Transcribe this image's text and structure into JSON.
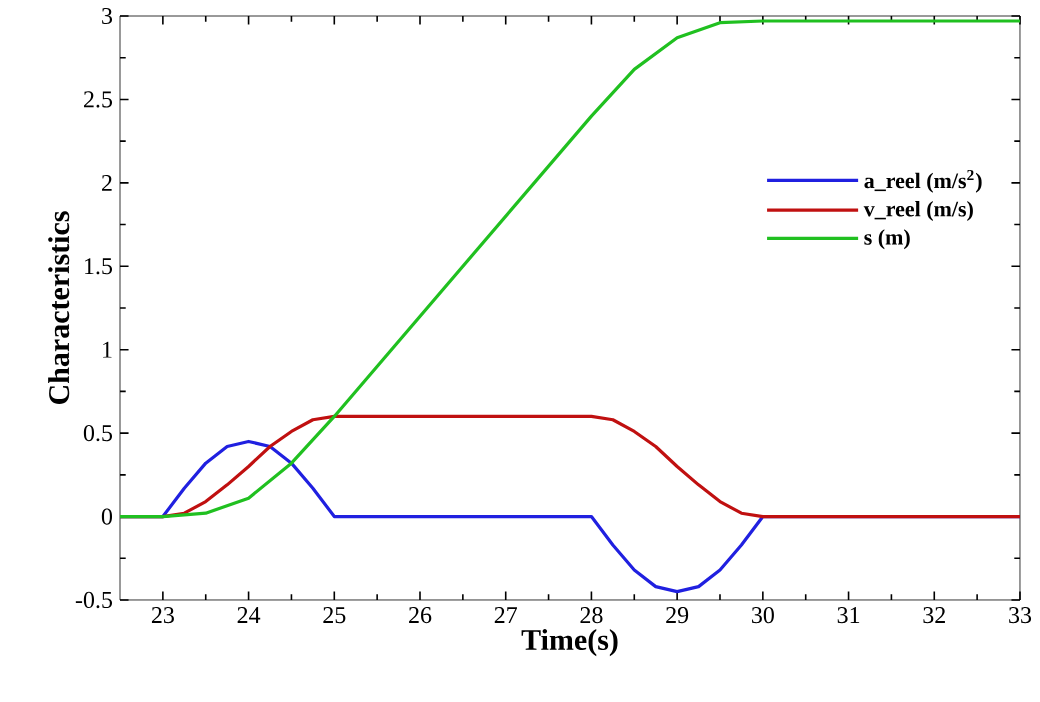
{
  "chart_data": {
    "type": "line",
    "xlabel": "Time(s)",
    "ylabel": "Characteristics",
    "xlim": [
      22.5,
      33
    ],
    "xticks": [
      23,
      24,
      25,
      26,
      27,
      28,
      29,
      30,
      31,
      32,
      33
    ],
    "ylim": [
      -0.5,
      3
    ],
    "yticks": [
      -0.5,
      0,
      0.5,
      1,
      1.5,
      2,
      2.5,
      3
    ],
    "grid": false,
    "legend": "right",
    "marker": "none",
    "line_style": "solid",
    "series": [
      {
        "name": "a_reel (m/s$^{2}$)",
        "color": "#2020e0",
        "x": [
          22.5,
          23,
          23.25,
          23.5,
          23.75,
          24,
          24.25,
          24.5,
          24.75,
          25,
          28,
          28.25,
          28.5,
          28.75,
          29,
          29.25,
          29.5,
          29.75,
          30,
          33
        ],
        "values": [
          0,
          0,
          0.17,
          0.32,
          0.42,
          0.45,
          0.42,
          0.32,
          0.17,
          0,
          0,
          -0.17,
          -0.32,
          -0.42,
          -0.45,
          -0.42,
          -0.32,
          -0.17,
          0,
          0
        ]
      },
      {
        "name": "v_reel (m/s)",
        "color": "#c01010",
        "x": [
          22.5,
          23,
          23.25,
          23.5,
          23.75,
          24,
          24.25,
          24.5,
          24.75,
          25,
          28,
          28.25,
          28.5,
          28.75,
          29,
          29.25,
          29.5,
          29.75,
          30,
          33
        ],
        "values": [
          0,
          0,
          0.02,
          0.09,
          0.19,
          0.3,
          0.42,
          0.51,
          0.58,
          0.6,
          0.6,
          0.58,
          0.51,
          0.42,
          0.3,
          0.19,
          0.09,
          0.02,
          0,
          0
        ]
      },
      {
        "name": "s (m)",
        "color": "#20c020",
        "x": [
          22.5,
          23,
          23.5,
          24,
          24.5,
          25,
          28,
          28.5,
          29,
          29.5,
          30,
          33
        ],
        "values": [
          0,
          0,
          0.02,
          0.11,
          0.32,
          0.6,
          2.4,
          2.68,
          2.87,
          2.96,
          2.97,
          2.97
        ]
      }
    ]
  }
}
